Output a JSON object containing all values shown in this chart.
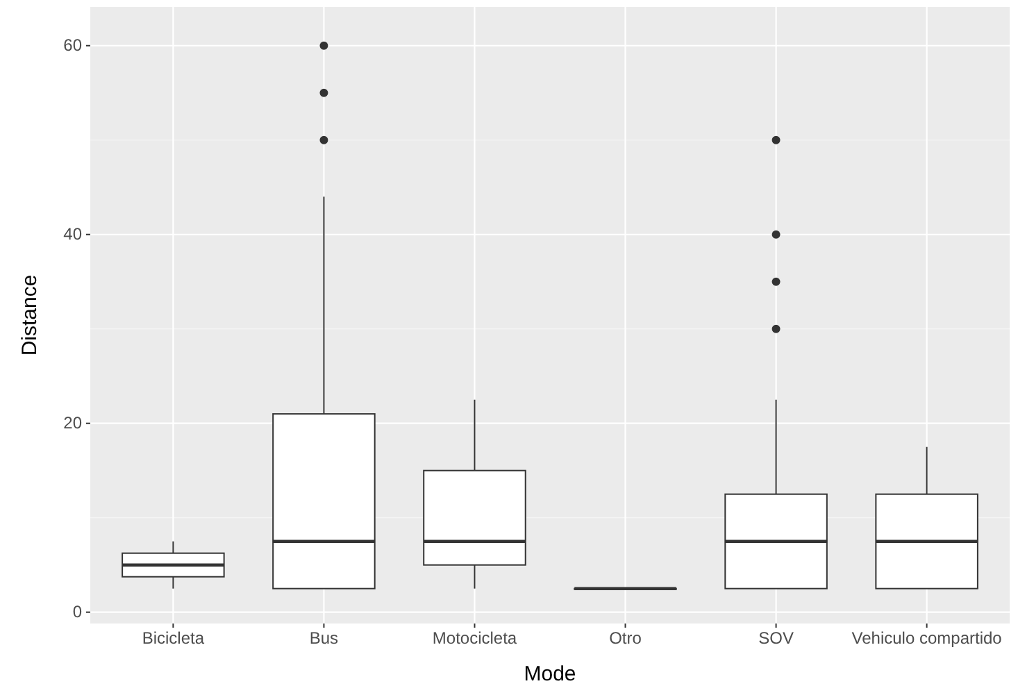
{
  "chart_data": {
    "type": "box",
    "xlabel": "Mode",
    "ylabel": "Distance",
    "categories": [
      "Bicicleta",
      "Bus",
      "Motocicleta",
      "Otro",
      "SOV",
      "Vehiculo compartido"
    ],
    "boxes": [
      {
        "low": 2.5,
        "q1": 3.75,
        "median": 5,
        "q3": 6.25,
        "high": 7.5
      },
      {
        "low": 2.5,
        "q1": 2.5,
        "median": 7.5,
        "q3": 21,
        "high": 44,
        "outliers": [
          50,
          55,
          60
        ]
      },
      {
        "low": 2.5,
        "q1": 5,
        "median": 7.5,
        "q3": 15,
        "high": 22.5
      },
      {
        "low": 2.5,
        "q1": 2.5,
        "median": 2.5,
        "q3": 2.5,
        "high": 2.5
      },
      {
        "low": 2.5,
        "q1": 2.5,
        "median": 7.5,
        "q3": 12.5,
        "high": 22.5,
        "outliers": [
          30,
          35,
          40,
          50
        ]
      },
      {
        "low": 2.5,
        "q1": 2.5,
        "median": 7.5,
        "q3": 12.5,
        "high": 17.5
      }
    ],
    "ylim": [
      -1.2,
      64.1
    ],
    "yticks": [
      0,
      20,
      40,
      60
    ],
    "grid": true
  }
}
